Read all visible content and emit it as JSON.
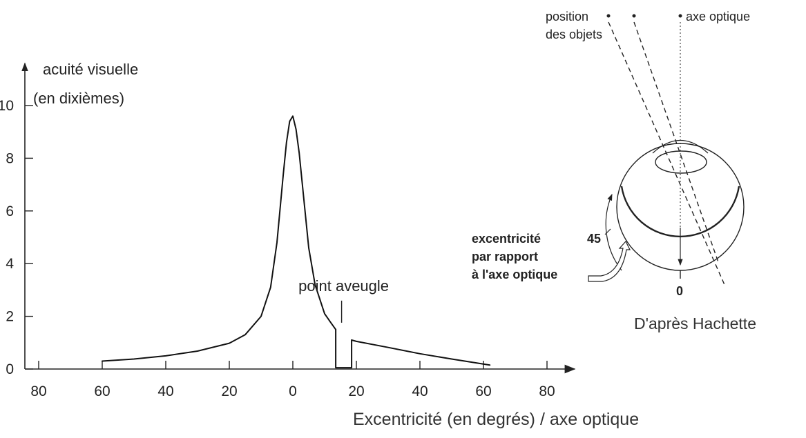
{
  "chart_data": {
    "type": "line",
    "ylabel_line1": "acuité visuelle",
    "ylabel_line2": "(en dixièmes)",
    "xlabel": "Excentricité (en degrés) / axe optique",
    "xlim": [
      -80,
      85
    ],
    "ylim": [
      0,
      11
    ],
    "xticks": [
      -80,
      -60,
      -40,
      -20,
      0,
      20,
      40,
      60,
      80
    ],
    "xtick_labels": [
      "80",
      "60",
      "40",
      "20",
      "0",
      "20",
      "40",
      "60",
      "80"
    ],
    "yticks": [
      0,
      2,
      4,
      6,
      8,
      10
    ],
    "ytick_labels": [
      "0",
      "2",
      "4",
      "6",
      "8",
      "10"
    ],
    "grid": false,
    "series": [
      {
        "x": [
          -60,
          -50,
          -40,
          -30,
          -20,
          -15,
          -10,
          -7,
          -5,
          -3,
          -2,
          -1,
          0,
          1,
          2,
          3,
          5,
          7,
          10,
          12,
          13.5
        ],
        "y": [
          0.3,
          0.38,
          0.5,
          0.68,
          0.98,
          1.3,
          2.0,
          3.1,
          4.8,
          7.4,
          8.6,
          9.4,
          9.6,
          9.1,
          8.2,
          7.0,
          4.6,
          3.2,
          2.1,
          1.75,
          1.5
        ]
      },
      {
        "x": [
          13.5,
          13.5,
          18.5,
          18.5
        ],
        "y": [
          1.5,
          0.05,
          0.05,
          1.1
        ]
      },
      {
        "x": [
          18.5,
          20,
          30,
          40,
          50,
          62
        ],
        "y": [
          1.1,
          1.05,
          0.82,
          0.58,
          0.38,
          0.15
        ]
      }
    ],
    "annotations": [
      {
        "text": "point aveugle",
        "x": 16,
        "y": 2.7
      }
    ]
  },
  "eye_diagram": {
    "label_position": "position",
    "label_objects": "des objets",
    "label_axis": "axe optique",
    "label_exc_1": "excentricité",
    "label_exc_2": "par rapport",
    "label_exc_3": "à l'axe optique",
    "label_45": "45",
    "label_0": "0"
  },
  "credit": "D'après Hachette"
}
